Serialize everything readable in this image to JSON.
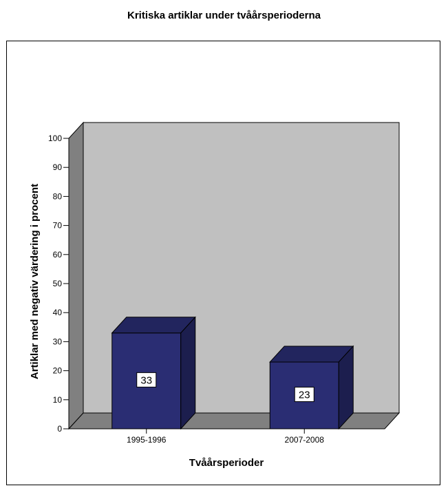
{
  "chart_data": {
    "type": "bar",
    "title": "Kritiska artiklar under tvåårsperioderna",
    "xlabel": "Tvåårsperioder",
    "ylabel": "Artiklar med negativ värdering i procent",
    "categories": [
      "1995-1996",
      "2007-2008"
    ],
    "values": [
      33,
      23
    ],
    "data_labels": [
      "33",
      "23"
    ],
    "ylim": [
      0,
      100
    ],
    "yticks": [
      "0",
      "10",
      "20",
      "30",
      "40",
      "50",
      "60",
      "70",
      "80",
      "90",
      "100"
    ],
    "three_d": true,
    "colors": {
      "bar_front": "#2a2d73",
      "bar_side": "#1c1e4e",
      "bar_top": "#22255e",
      "back_wall": "#c0c0c0",
      "side_wall": "#808080",
      "floor": "#808080"
    }
  }
}
